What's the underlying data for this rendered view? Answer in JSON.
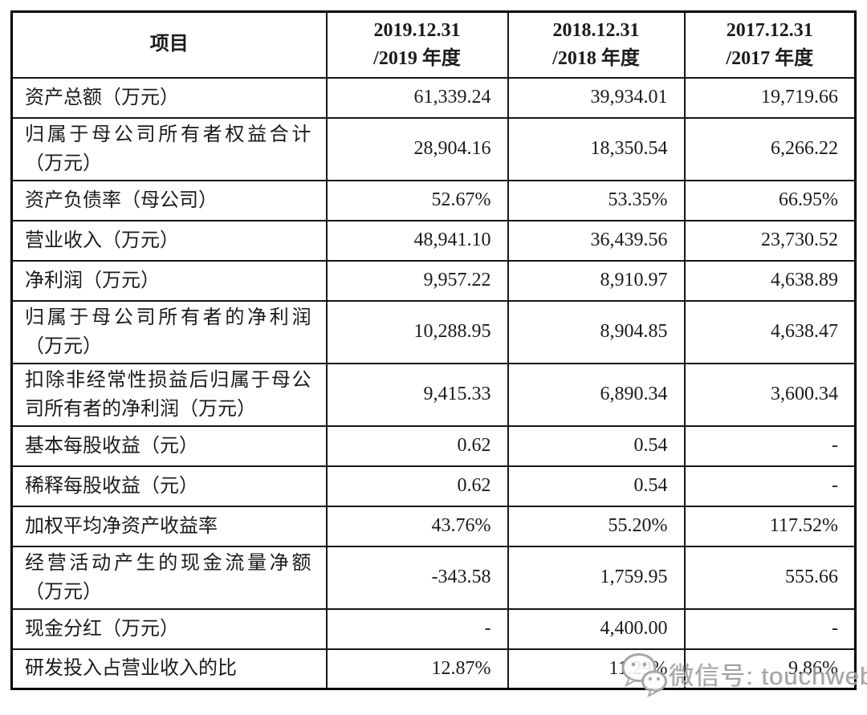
{
  "page": {
    "background": "#ffffff",
    "border_color": "#161616",
    "text_color": "#1b1b1b"
  },
  "table": {
    "header": {
      "item_label": "项目",
      "periods": [
        {
          "line1": "2019.12.31",
          "line2": "/2019 年度"
        },
        {
          "line1": "2018.12.31",
          "line2": "/2018 年度"
        },
        {
          "line1": "2017.12.31",
          "line2": "/2017 年度"
        }
      ]
    },
    "rows": [
      {
        "label": "资产总额（万元）",
        "values": [
          "61,339.24",
          "39,934.01",
          "19,719.66"
        ],
        "tall": false
      },
      {
        "label": "归属于母公司所有者权益合计（万元）",
        "values": [
          "28,904.16",
          "18,350.54",
          "6,266.22"
        ],
        "tall": true
      },
      {
        "label": "资产负债率（母公司）",
        "values": [
          "52.67%",
          "53.35%",
          "66.95%"
        ],
        "tall": false
      },
      {
        "label": "营业收入（万元）",
        "values": [
          "48,941.10",
          "36,439.56",
          "23,730.52"
        ],
        "tall": false
      },
      {
        "label": "净利润（万元）",
        "values": [
          "9,957.22",
          "8,910.97",
          "4,638.89"
        ],
        "tall": false
      },
      {
        "label": "归属于母公司所有者的净利润（万元）",
        "values": [
          "10,288.95",
          "8,904.85",
          "4,638.47"
        ],
        "tall": true
      },
      {
        "label": "扣除非经常性损益后归属于母公司所有者的净利润（万元）",
        "values": [
          "9,415.33",
          "6,890.34",
          "3,600.34"
        ],
        "tall": true
      },
      {
        "label": "基本每股收益（元）",
        "values": [
          "0.62",
          "0.54",
          "-"
        ],
        "tall": false
      },
      {
        "label": "稀释每股收益（元）",
        "values": [
          "0.62",
          "0.54",
          "-"
        ],
        "tall": false
      },
      {
        "label": "加权平均净资产收益率",
        "values": [
          "43.76%",
          "55.20%",
          "117.52%"
        ],
        "tall": false
      },
      {
        "label": "经营活动产生的现金流量净额（万元）",
        "values": [
          "-343.58",
          "1,759.95",
          "555.66"
        ],
        "tall": true
      },
      {
        "label": "现金分红（万元）",
        "values": [
          "-",
          "4,400.00",
          "-"
        ],
        "tall": false
      },
      {
        "label": "研发投入占营业收入的比",
        "values": [
          "12.87%",
          "11.29%",
          "9.86%"
        ],
        "tall": false
      }
    ]
  },
  "watermark": {
    "icon": "wechat-icon",
    "text": "微信号: touchweb",
    "color": "#999999"
  }
}
